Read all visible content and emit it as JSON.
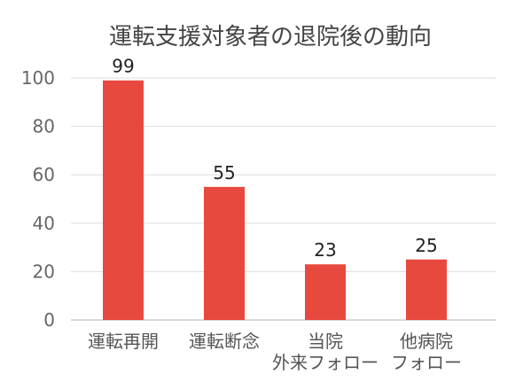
{
  "chart_data": {
    "type": "bar",
    "title": "運転支援対象者の退院後の動向",
    "categories": [
      [
        "運転再開"
      ],
      [
        "運転断念"
      ],
      [
        "当院",
        "外来フォロー"
      ],
      [
        "他病院",
        "フォロー"
      ]
    ],
    "values": [
      99,
      55,
      23,
      25
    ],
    "ylim": [
      0,
      100
    ],
    "yticks": [
      0,
      20,
      40,
      60,
      80,
      100
    ],
    "grid": true,
    "bar_color": "#e8493f"
  }
}
